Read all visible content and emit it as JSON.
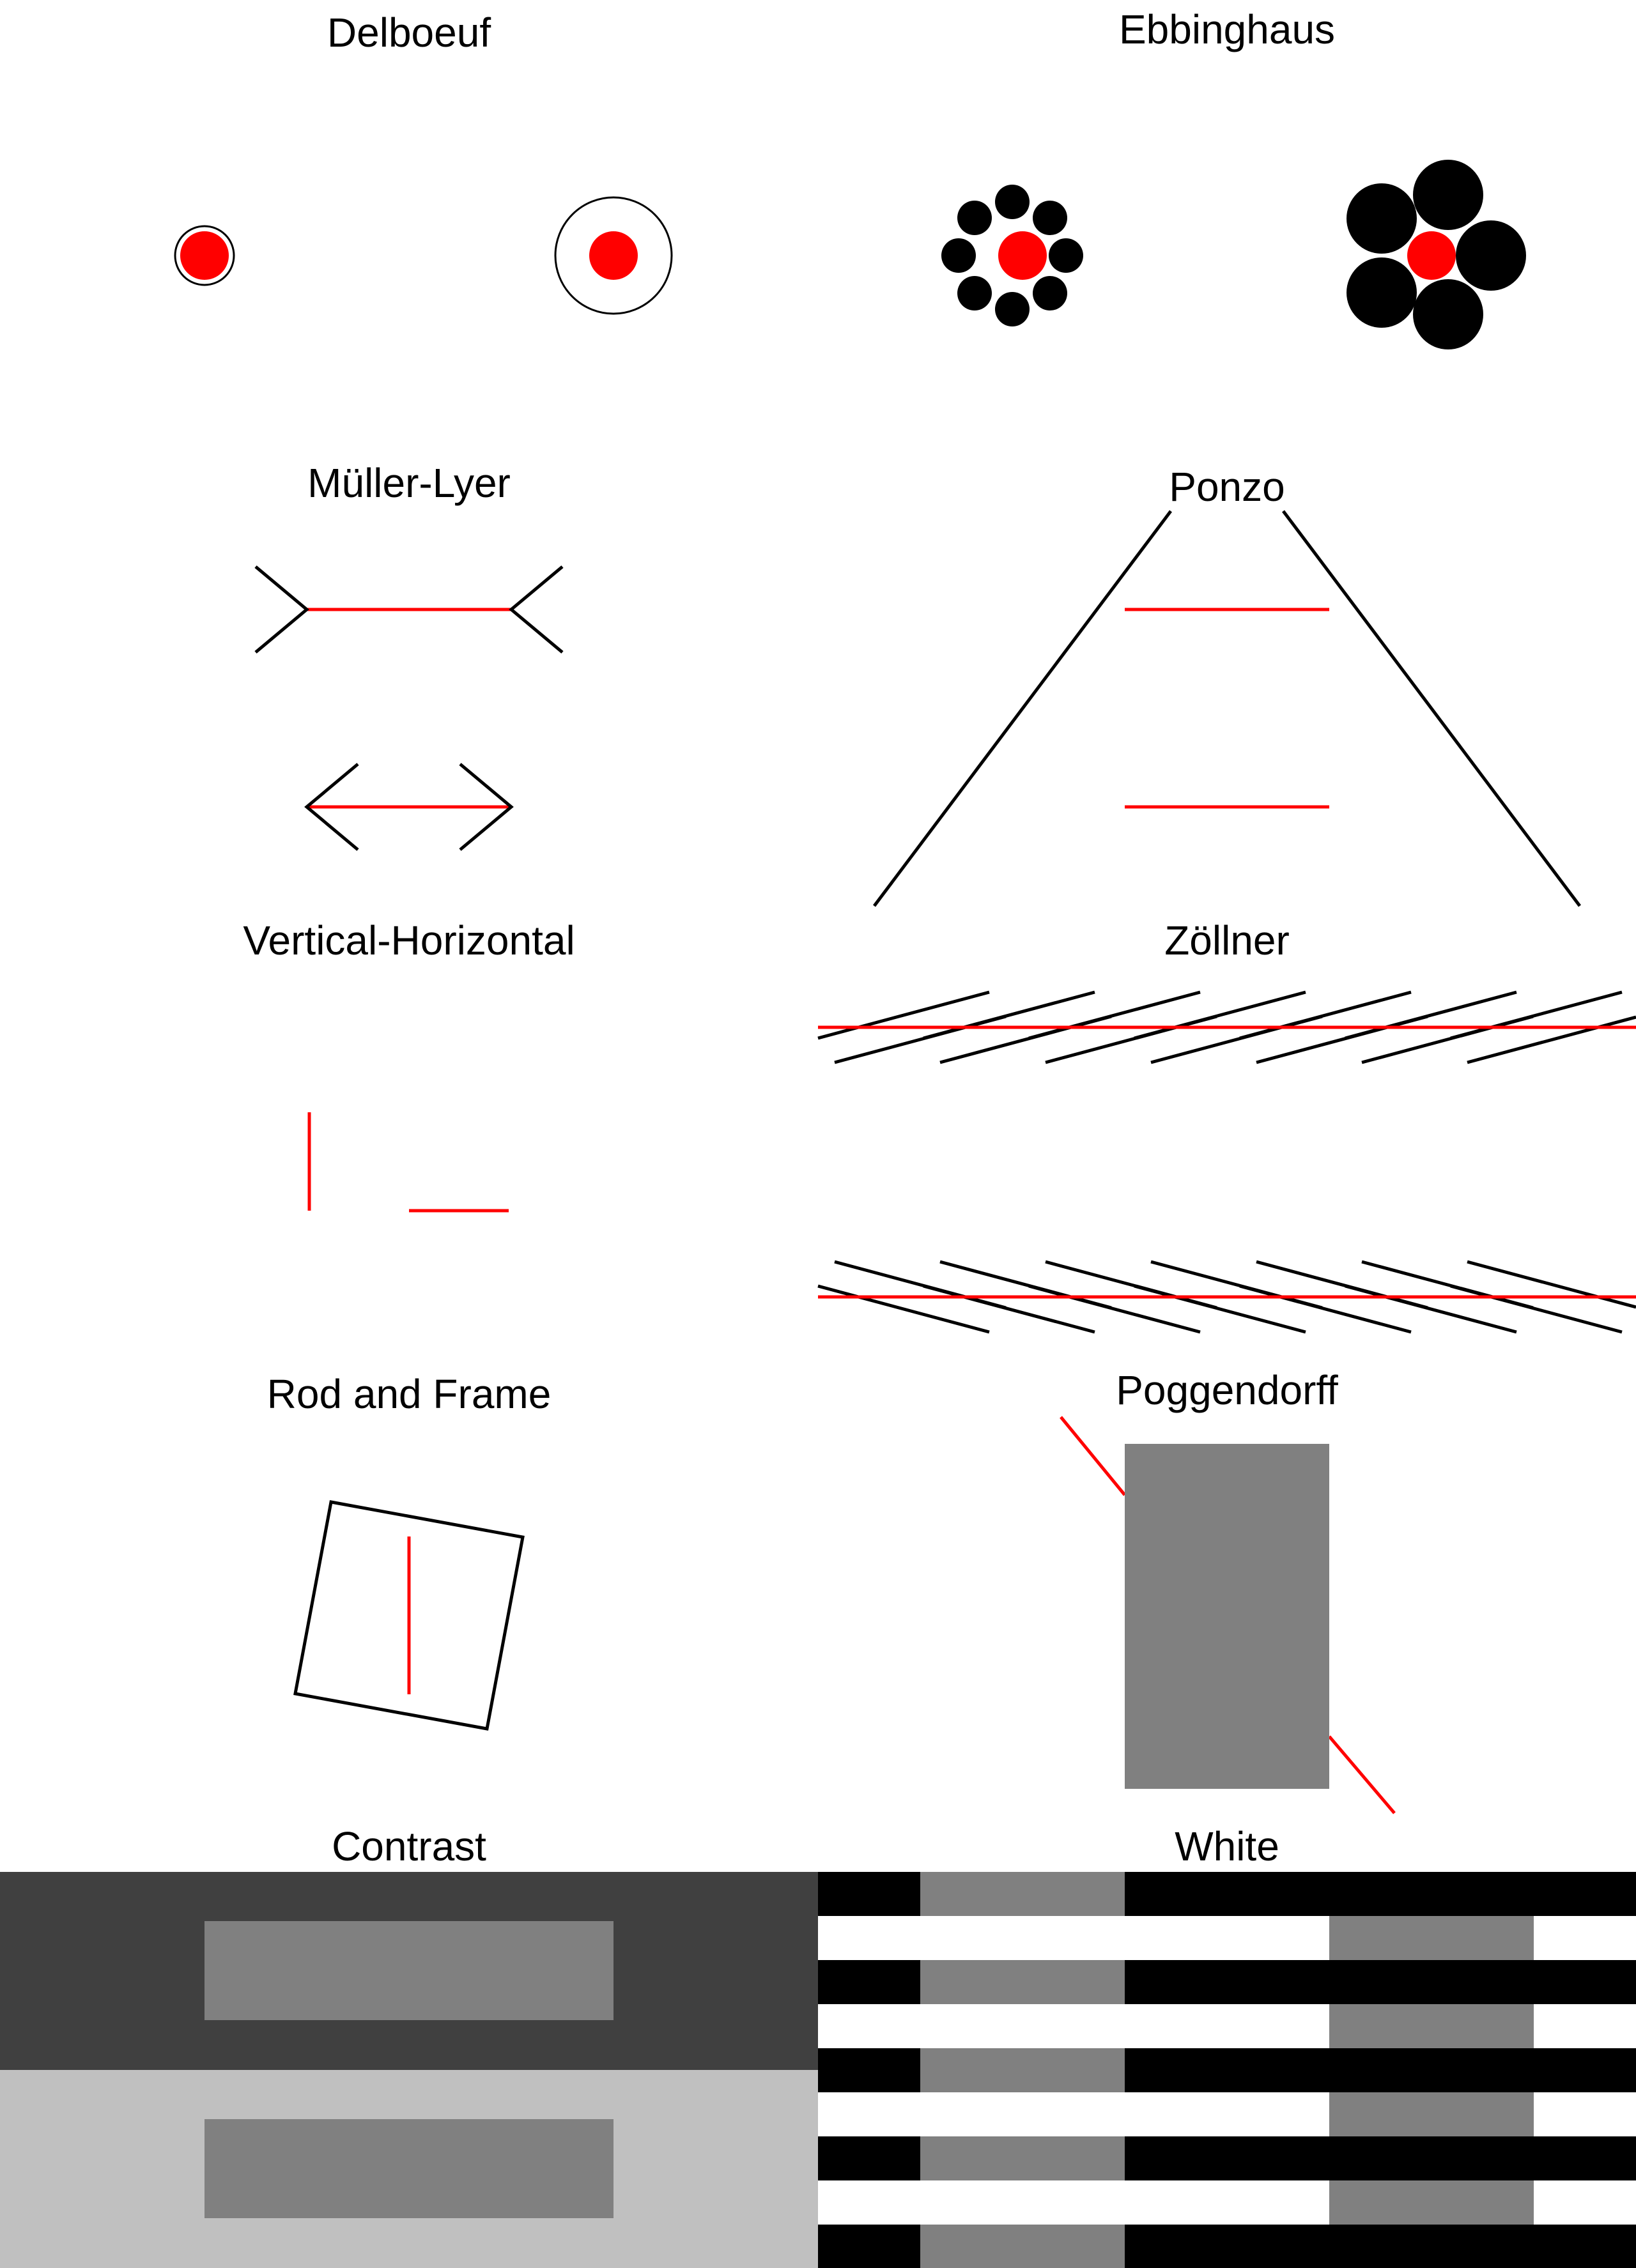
{
  "titles": {
    "delboeuf": "Delboeuf",
    "ebbinghaus": "Ebbinghaus",
    "muller_lyer": "Müller-Lyer",
    "ponzo": "Ponzo",
    "vertical_horizontal": "Vertical-Horizontal",
    "zollner": "Zöllner",
    "rod_and_frame": "Rod and Frame",
    "poggendorff": "Poggendorff",
    "contrast": "Contrast",
    "white": "White"
  },
  "colors": {
    "target": "#ff0000",
    "ink": "#000000",
    "mid_gray": "#808080",
    "dark_gray": "#404040",
    "light_gray": "#c0c0c0",
    "background": "#ffffff"
  }
}
